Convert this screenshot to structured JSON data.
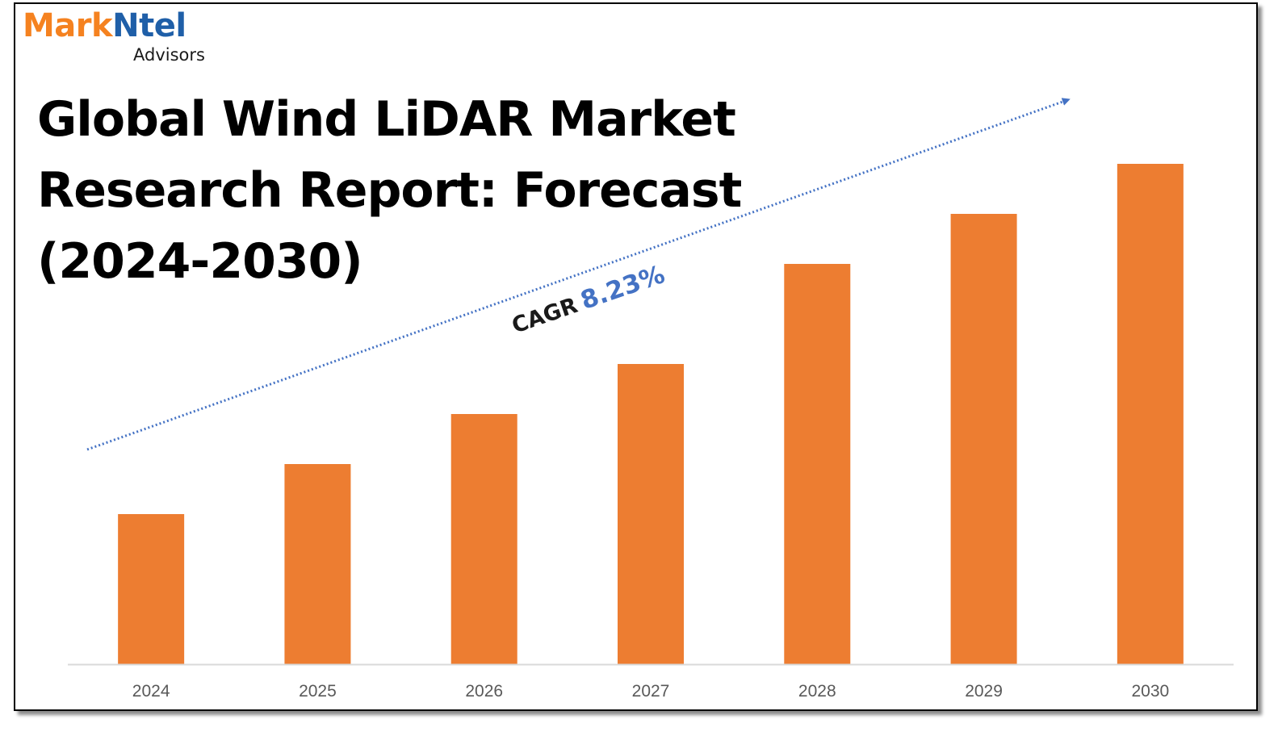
{
  "logo": {
    "part1": "Mark",
    "part2": "Ntel",
    "sub": "Advisors",
    "color1": "#F58220",
    "color2": "#1F5FA8"
  },
  "title": {
    "line1": "Global Wind LiDAR Market",
    "line2": "Research Report: Forecast",
    "line3": "(2024-2030)"
  },
  "cagr": {
    "label": "CAGR",
    "value": "8.23%",
    "label_color": "#1a1a1a",
    "value_color": "#4472C4"
  },
  "chart_data": {
    "type": "bar",
    "title": "Global Wind LiDAR Market Research Report: Forecast (2024-2030)",
    "categories": [
      "2024",
      "2025",
      "2026",
      "2027",
      "2028",
      "2029",
      "2030"
    ],
    "values": [
      30,
      40,
      50,
      60,
      80,
      90,
      100
    ],
    "ylim": [
      0,
      100
    ],
    "bar_color": "#ED7D31",
    "axis_color": "#D9D9D9",
    "trend_color": "#4472C4",
    "grid": false,
    "legend": "none"
  }
}
